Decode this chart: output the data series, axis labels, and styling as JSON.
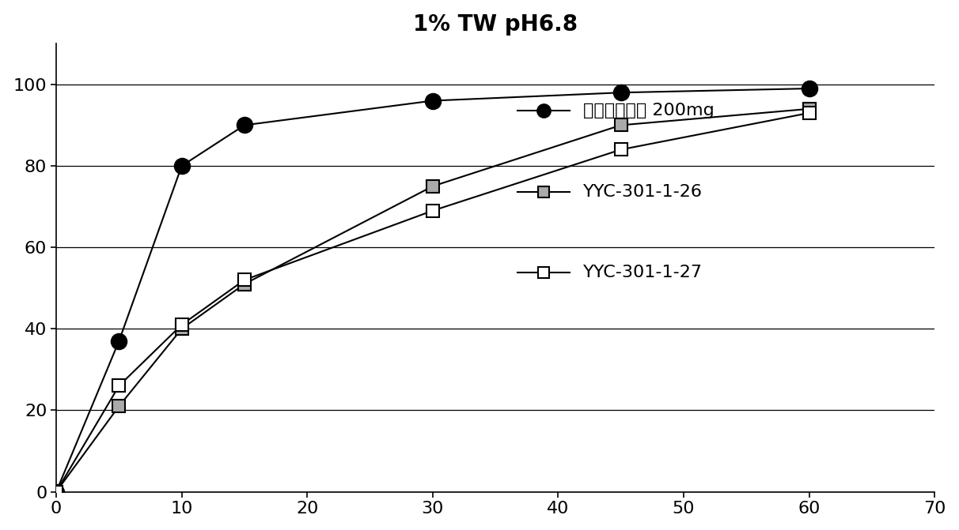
{
  "title": "1% TW pH6.8",
  "title_fontsize": 20,
  "xlim": [
    0,
    70
  ],
  "ylim": [
    0,
    110
  ],
  "xticks": [
    0,
    10,
    20,
    30,
    40,
    50,
    60,
    70
  ],
  "yticks": [
    0,
    20,
    40,
    60,
    80,
    100
  ],
  "series": [
    {
      "label": "塞来昔布胶囊 200mg",
      "x": [
        0,
        5,
        10,
        15,
        30,
        45,
        60
      ],
      "y": [
        0,
        37,
        80,
        90,
        96,
        98,
        99
      ],
      "color": "#000000",
      "marker": "o",
      "marker_size": 14,
      "marker_facecolor": "#000000",
      "linewidth": 1.5,
      "linestyle": "-"
    },
    {
      "label": "YYC-301-1-26",
      "x": [
        0,
        5,
        10,
        15,
        30,
        45,
        60
      ],
      "y": [
        0,
        21,
        40,
        51,
        75,
        90,
        94
      ],
      "color": "#000000",
      "marker": "s",
      "marker_size": 11,
      "marker_facecolor": "#aaaaaa",
      "linewidth": 1.5,
      "linestyle": "-"
    },
    {
      "label": "YYC-301-1-27",
      "x": [
        0,
        5,
        10,
        15,
        30,
        45,
        60
      ],
      "y": [
        0,
        26,
        41,
        52,
        69,
        84,
        93
      ],
      "color": "#000000",
      "marker": "s",
      "marker_size": 11,
      "marker_facecolor": "#ffffff",
      "linewidth": 1.5,
      "linestyle": "-"
    }
  ],
  "legend_fontsize": 16,
  "background_color": "#ffffff",
  "grid_color": "#000000",
  "tick_fontsize": 16
}
